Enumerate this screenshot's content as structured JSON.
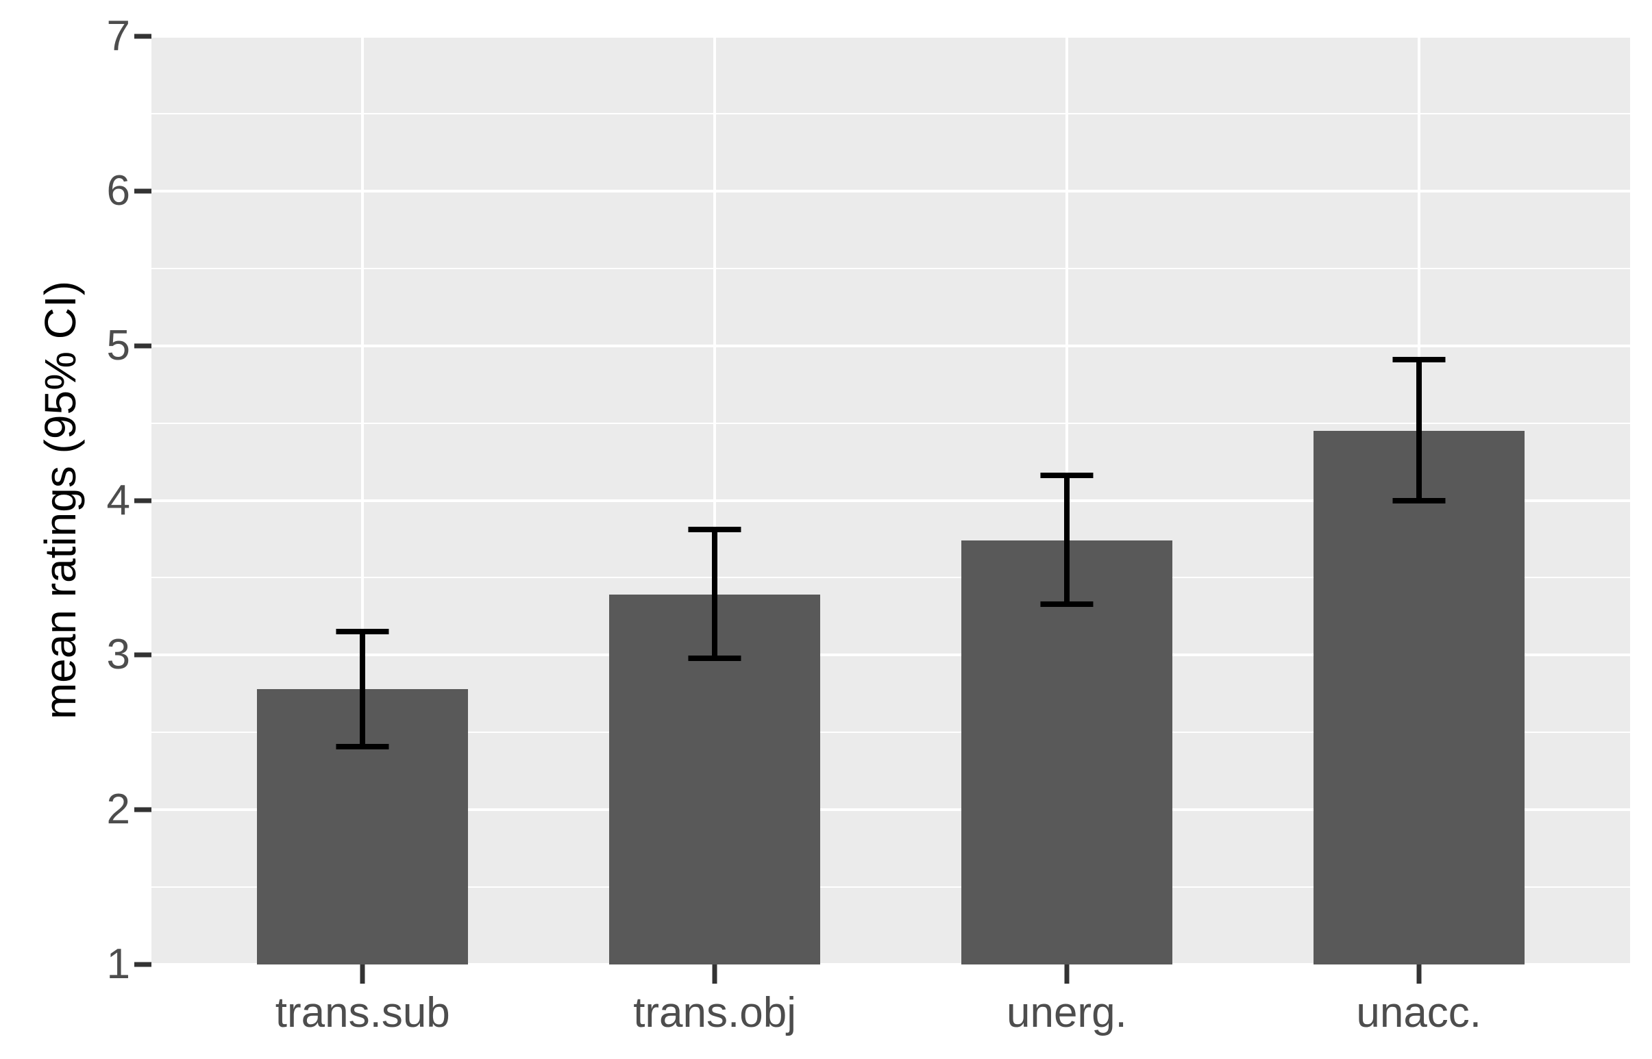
{
  "chart_data": {
    "type": "bar",
    "title": "",
    "xlabel": "",
    "ylabel": "mean ratings (95% CI)",
    "categories": [
      "trans.sub",
      "trans.obj",
      "unerg.",
      "unacc."
    ],
    "values": [
      2.78,
      3.39,
      3.74,
      4.45
    ],
    "error_bars": {
      "kind": "95% confidence interval",
      "lower": [
        2.41,
        2.98,
        3.33,
        4.0
      ],
      "upper": [
        3.15,
        3.81,
        4.16,
        4.91
      ]
    },
    "ylim": [
      1,
      7
    ],
    "y_ticks": [
      1,
      2,
      3,
      4,
      5,
      6,
      7
    ],
    "y_minor_ticks": [
      1.5,
      2.5,
      3.5,
      4.5,
      5.5,
      6.5
    ],
    "legend": "none",
    "grid": "horizontal major and minor white gridlines; vertical white gridline at each category center",
    "style": {
      "theme": "ggplot2 grey",
      "bar_fill": "#595959",
      "panel_background": "#ebebeb",
      "grid_color": "#ffffff",
      "errorbar_color": "#000000",
      "tick_mark_color": "#333333",
      "tick_label_color": "#4d4d4d",
      "axis_title_color": "#000000",
      "figure_background": "#ffffff"
    }
  }
}
